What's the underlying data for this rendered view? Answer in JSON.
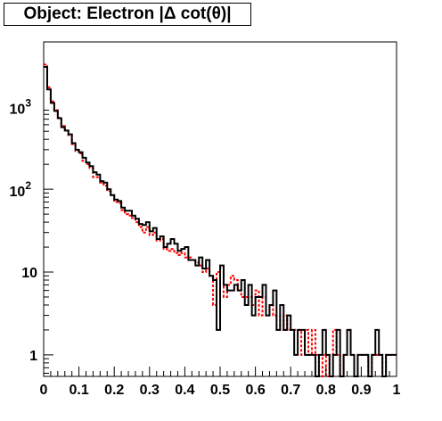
{
  "chart_data": {
    "type": "line",
    "title": "Object: Electron |Δ cot(θ)|",
    "xlabel": "",
    "ylabel": "",
    "xlim": [
      0,
      1
    ],
    "ylim": [
      0.55,
      6000
    ],
    "y_scale": "log",
    "grid": false,
    "legend": "none",
    "x_ticks": [
      "0",
      "0.1",
      "0.2",
      "0.3",
      "0.4",
      "0.5",
      "0.6",
      "0.7",
      "0.8",
      "0.9",
      "1"
    ],
    "y_ticks": [
      {
        "value": 1,
        "label": "1"
      },
      {
        "value": 10,
        "label": "10"
      },
      {
        "value": 100,
        "label": "10",
        "exp": "2"
      },
      {
        "value": 1000,
        "label": "10",
        "exp": "3"
      }
    ],
    "bin_width": 0.01,
    "series": [
      {
        "style": "solid",
        "color": "#000000",
        "values": [
          3000,
          1600,
          1100,
          880,
          720,
          560,
          510,
          460,
          360,
          300,
          280,
          240,
          210,
          190,
          160,
          150,
          125,
          120,
          100,
          85,
          75,
          72,
          60,
          55,
          55,
          48,
          44,
          38,
          37,
          40,
          31,
          34,
          25,
          27,
          20,
          22,
          25,
          22,
          18,
          19,
          20,
          14,
          14,
          12,
          15,
          11,
          14,
          9,
          8,
          2,
          12,
          7,
          6,
          6,
          7,
          6,
          8,
          4,
          7,
          3,
          5,
          5,
          7,
          3,
          4,
          6,
          2,
          4,
          2,
          3,
          2,
          1,
          2,
          2,
          1,
          1,
          1,
          0.5,
          1,
          2,
          1,
          0.5,
          1,
          2,
          0.5,
          1,
          2,
          1,
          0.5,
          1,
          1,
          1,
          0.5,
          1,
          2,
          1,
          0.5,
          1,
          1,
          1
        ]
      },
      {
        "style": "dashed",
        "color": "#ff0000",
        "values": [
          3200,
          1700,
          1150,
          900,
          730,
          580,
          510,
          450,
          350,
          290,
          270,
          220,
          200,
          180,
          140,
          140,
          120,
          110,
          95,
          85,
          70,
          68,
          56,
          50,
          48,
          45,
          40,
          35,
          30,
          35,
          28,
          30,
          24,
          25,
          19,
          18,
          19,
          17,
          16,
          17,
          15,
          15,
          14,
          13,
          12,
          10,
          11,
          9,
          4,
          10,
          11,
          5,
          7,
          9,
          8,
          6,
          5,
          5,
          5,
          4,
          6,
          3,
          5,
          3,
          4,
          3,
          3,
          2,
          3,
          2,
          2,
          2,
          2,
          1,
          2,
          1,
          2,
          1,
          0.5,
          1,
          0.5,
          1,
          2,
          1,
          0.5,
          1,
          2,
          1,
          0.5,
          1,
          1,
          1,
          0.5,
          1,
          1,
          1,
          0.5,
          1,
          1,
          1
        ]
      }
    ]
  }
}
